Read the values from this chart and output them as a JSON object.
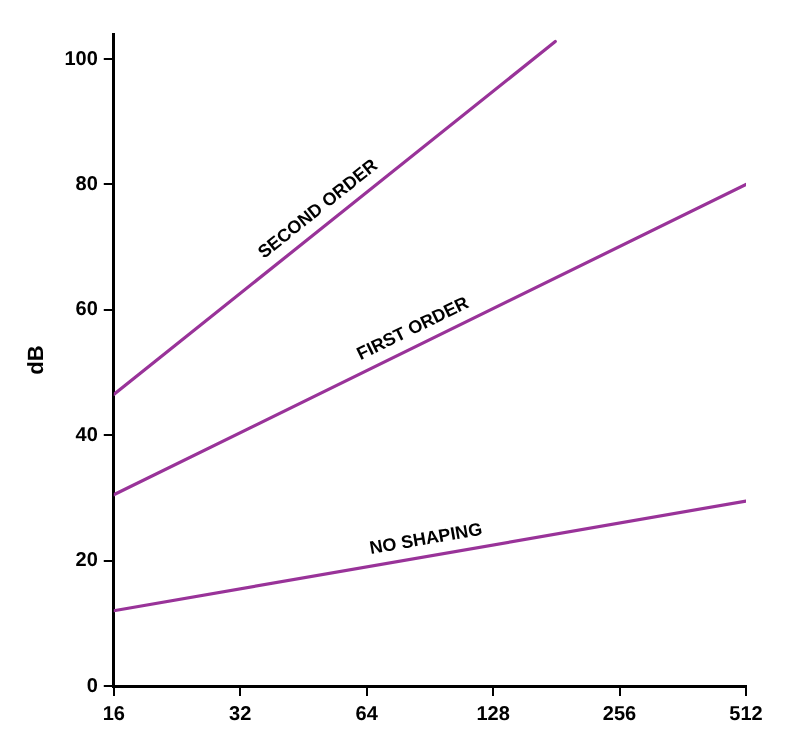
{
  "chart_data": {
    "type": "line",
    "ylabel": "dB",
    "log": "x",
    "xlim": [
      16,
      512
    ],
    "xticks": [
      16,
      32,
      64,
      128,
      256,
      512
    ],
    "ylim": [
      0,
      104
    ],
    "yticks": [
      0,
      20,
      40,
      60,
      80,
      100
    ],
    "grid": false,
    "legend": false,
    "marker": "none",
    "line_style": "solid",
    "series": [
      {
        "color": "#993399",
        "x": [
          16,
          512
        ],
        "values": [
          12,
          29.5
        ]
      },
      {
        "color": "#993399",
        "x": [
          16,
          512
        ],
        "values": [
          30.5,
          80
        ]
      },
      {
        "color": "#993399",
        "x": [
          16,
          180
        ],
        "values": [
          46.5,
          102.8
        ]
      }
    ],
    "annotations": [
      {
        "text": "SECOND ORDER",
        "x": 52,
        "y": 73.9
      },
      {
        "text": "FIRST ORDER",
        "x": 86,
        "y": 54.5
      },
      {
        "text": "NO SHAPING",
        "x": 90,
        "y": 20.7
      }
    ]
  }
}
